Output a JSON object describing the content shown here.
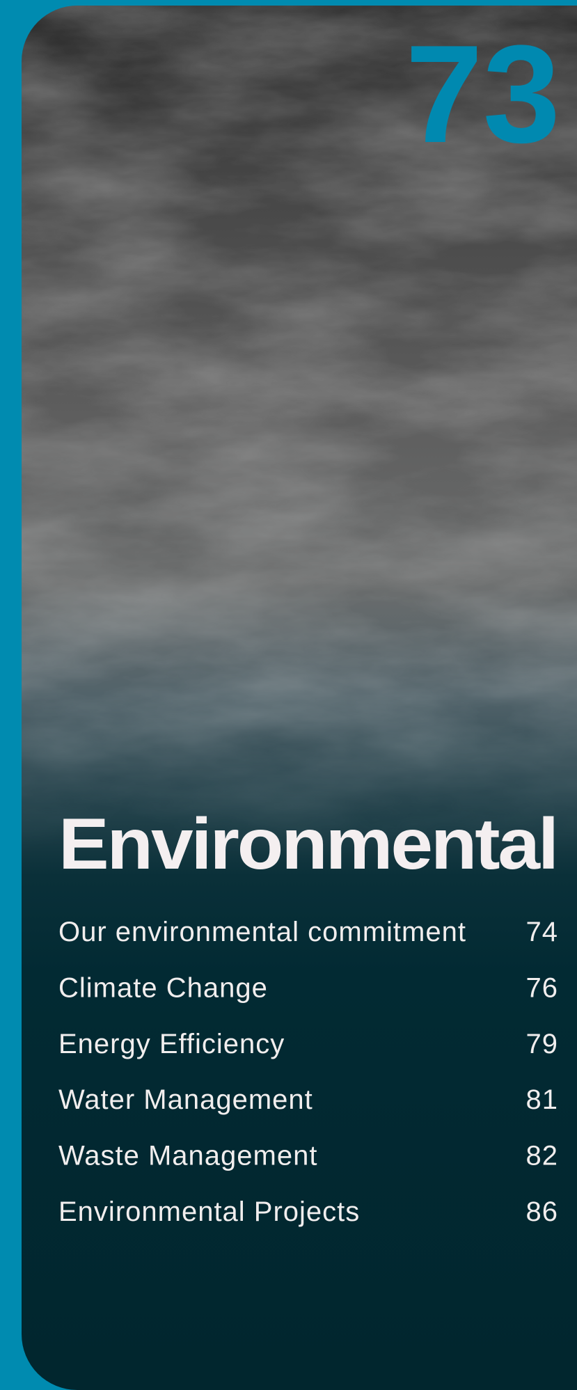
{
  "page_number": "73",
  "section": {
    "title": "Environmental",
    "entries": [
      {
        "label": "Our environmental commitment",
        "page": "74"
      },
      {
        "label": "Climate Change",
        "page": "76"
      },
      {
        "label": "Energy Efficiency",
        "page": "79"
      },
      {
        "label": "Water Management",
        "page": "81"
      },
      {
        "label": "Waste Management",
        "page": "82"
      },
      {
        "label": "Environmental Projects",
        "page": "86"
      }
    ]
  }
}
